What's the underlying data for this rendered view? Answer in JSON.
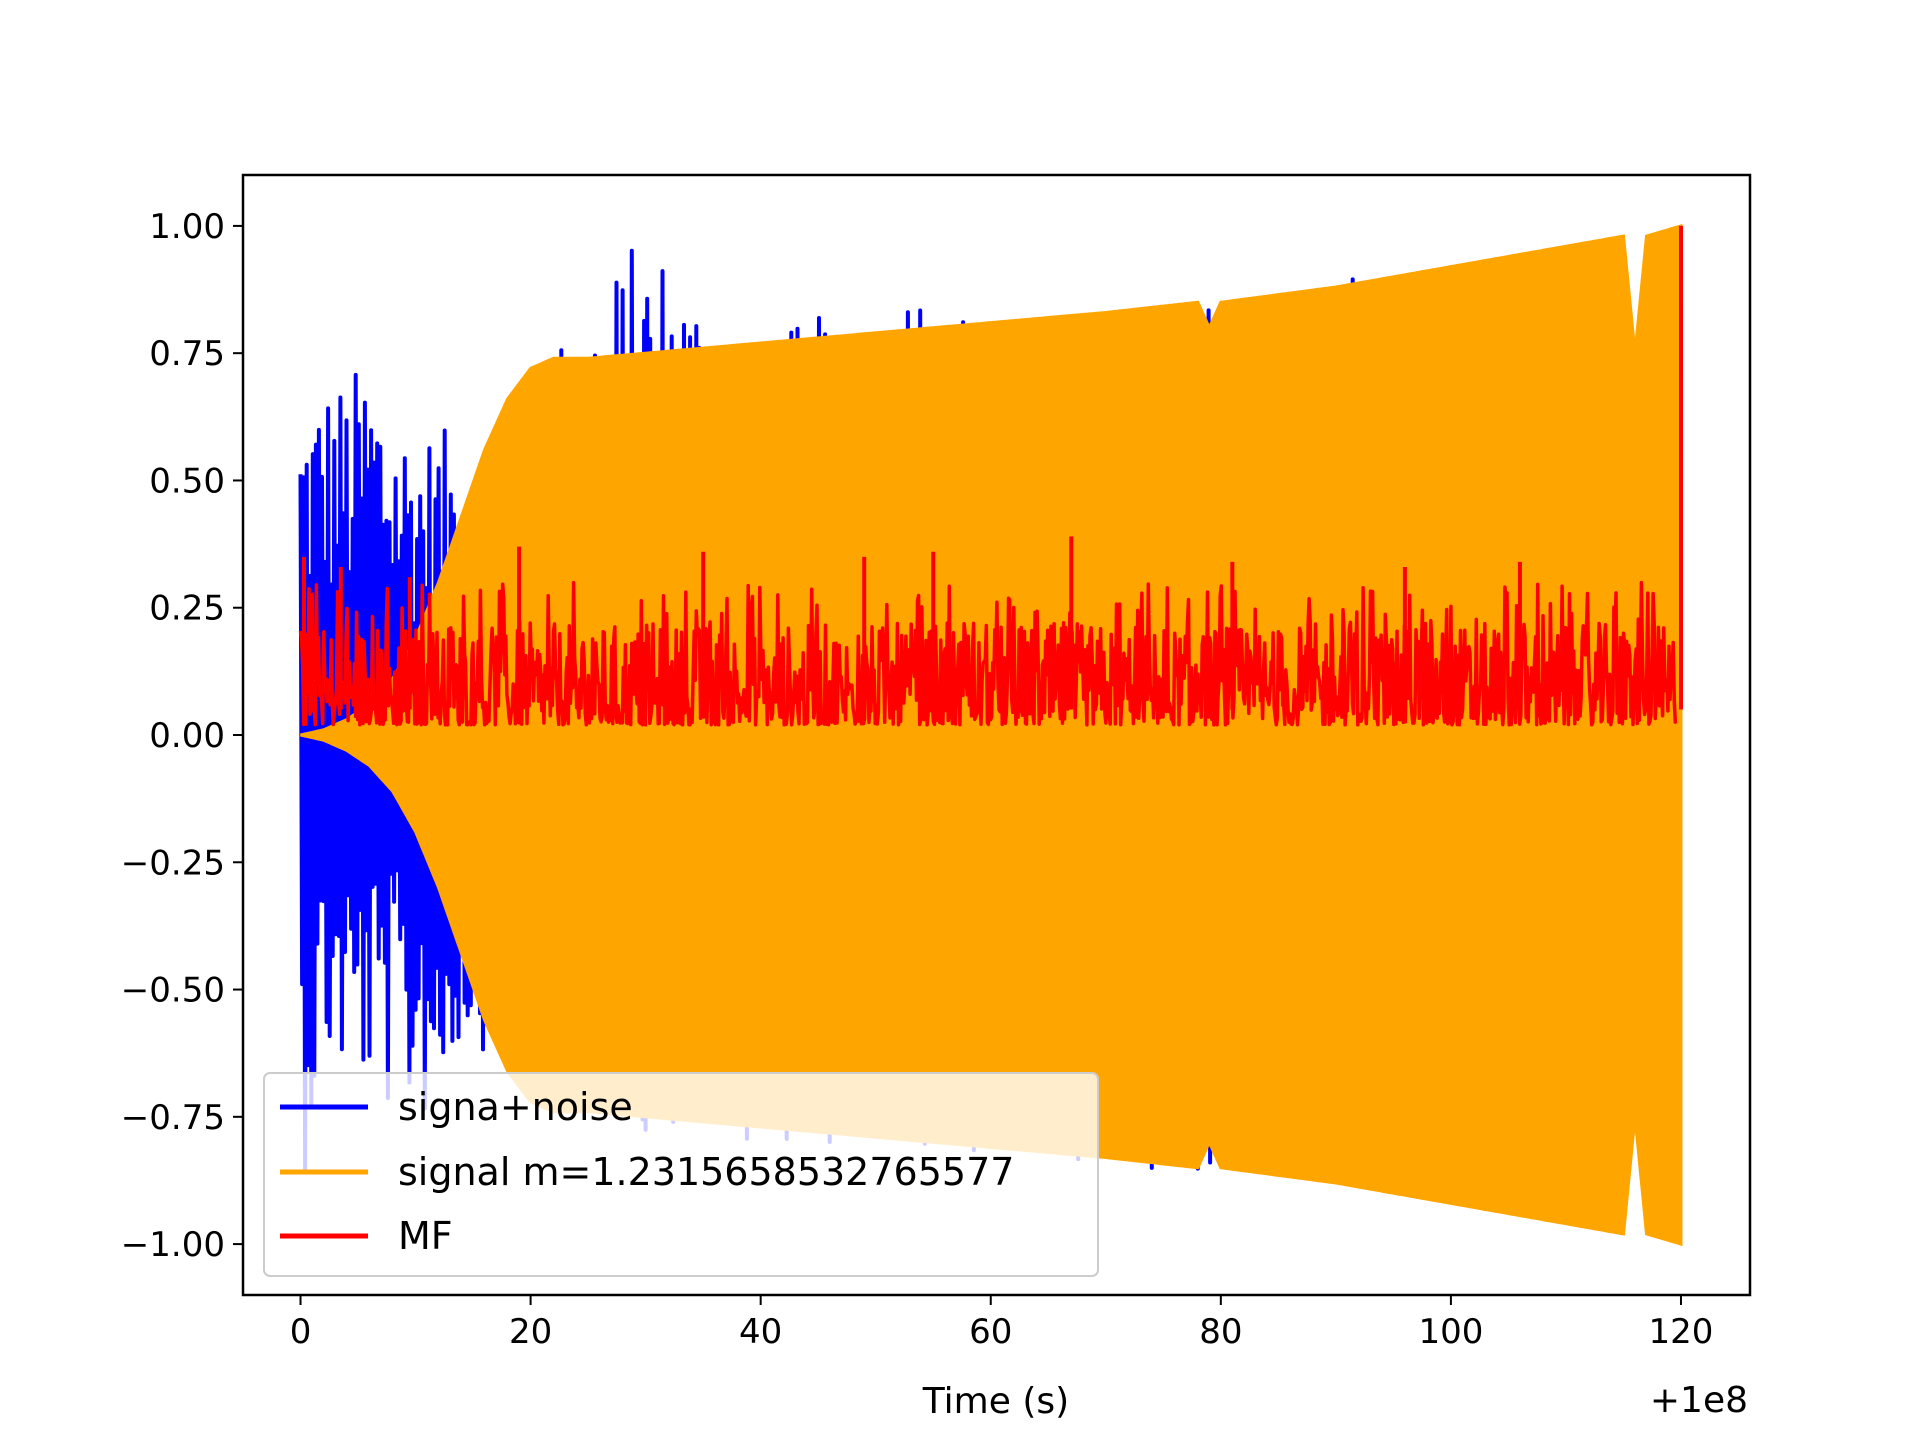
{
  "chart_data": {
    "type": "line",
    "title": "",
    "xlabel": "Time (s)",
    "ylabel": "",
    "x_offset_label": "+1e8",
    "xlim": [
      -5,
      126
    ],
    "ylim": [
      -1.1,
      1.1
    ],
    "xticks": [
      0,
      20,
      40,
      60,
      80,
      100,
      120
    ],
    "xtick_labels": [
      "0",
      "20",
      "40",
      "60",
      "80",
      "100",
      "120"
    ],
    "yticks": [
      1.0,
      0.75,
      0.5,
      0.25,
      0.0,
      -0.25,
      -0.5,
      -0.75,
      -1.0
    ],
    "ytick_labels": [
      "1.00",
      "0.75",
      "0.50",
      "0.25",
      "0.00",
      "−0.25",
      "−0.50",
      "−0.75",
      "−1.00"
    ],
    "grid": false,
    "legend_position": "lower-left",
    "series": [
      {
        "name": "signa+noise",
        "color": "#0000ff",
        "envelope_x": [
          0,
          2,
          4,
          6,
          8,
          10,
          12,
          14,
          16,
          18,
          20,
          30,
          40,
          53,
          60,
          73,
          80,
          88,
          100,
          110,
          115,
          116,
          117,
          120
        ],
        "envelope_upper": [
          0.66,
          0.7,
          0.7,
          0.75,
          0.65,
          0.6,
          0.6,
          0.6,
          0.6,
          0.65,
          0.72,
          1.0,
          0.78,
          0.89,
          0.8,
          0.84,
          0.84,
          0.91,
          0.92,
          0.96,
          0.98,
          0.75,
          0.98,
          1.0
        ],
        "envelope_lower": [
          -0.91,
          -0.65,
          -0.68,
          -0.7,
          -0.75,
          -0.76,
          -0.75,
          -0.6,
          -0.62,
          -0.68,
          -0.72,
          -0.78,
          -0.8,
          -0.82,
          -0.84,
          -0.85,
          -0.86,
          -0.87,
          -0.9,
          -0.95,
          -0.98,
          -0.75,
          -0.98,
          -1.0
        ]
      },
      {
        "name": "signal m=1.2315658532765577",
        "color": "#ffa500",
        "envelope_x": [
          0,
          2,
          4,
          6,
          8,
          10,
          12,
          14,
          16,
          18,
          20,
          22,
          25,
          30,
          40,
          50,
          60,
          70,
          78,
          79,
          80,
          90,
          100,
          110,
          115,
          116,
          117,
          120
        ],
        "envelope_amplitude": [
          0.0,
          0.01,
          0.03,
          0.06,
          0.11,
          0.19,
          0.3,
          0.43,
          0.56,
          0.66,
          0.72,
          0.74,
          0.74,
          0.75,
          0.77,
          0.79,
          0.81,
          0.83,
          0.85,
          0.8,
          0.85,
          0.88,
          0.92,
          0.96,
          0.98,
          0.75,
          0.98,
          1.0
        ]
      },
      {
        "name": "MF",
        "color": "#ff0000",
        "baseline": 0.08,
        "spikes": [
          {
            "x": 0.3,
            "y": 0.35
          },
          {
            "x": 3.5,
            "y": 0.33
          },
          {
            "x": 9.5,
            "y": 0.31
          },
          {
            "x": 19,
            "y": 0.37
          },
          {
            "x": 35,
            "y": 0.36
          },
          {
            "x": 49,
            "y": 0.35
          },
          {
            "x": 55,
            "y": 0.36
          },
          {
            "x": 67,
            "y": 0.39
          },
          {
            "x": 81,
            "y": 0.34
          },
          {
            "x": 96,
            "y": 0.33
          },
          {
            "x": 106,
            "y": 0.34
          },
          {
            "x": 120,
            "y": 1.0
          }
        ],
        "range": [
          0.0,
          0.35
        ]
      }
    ]
  }
}
